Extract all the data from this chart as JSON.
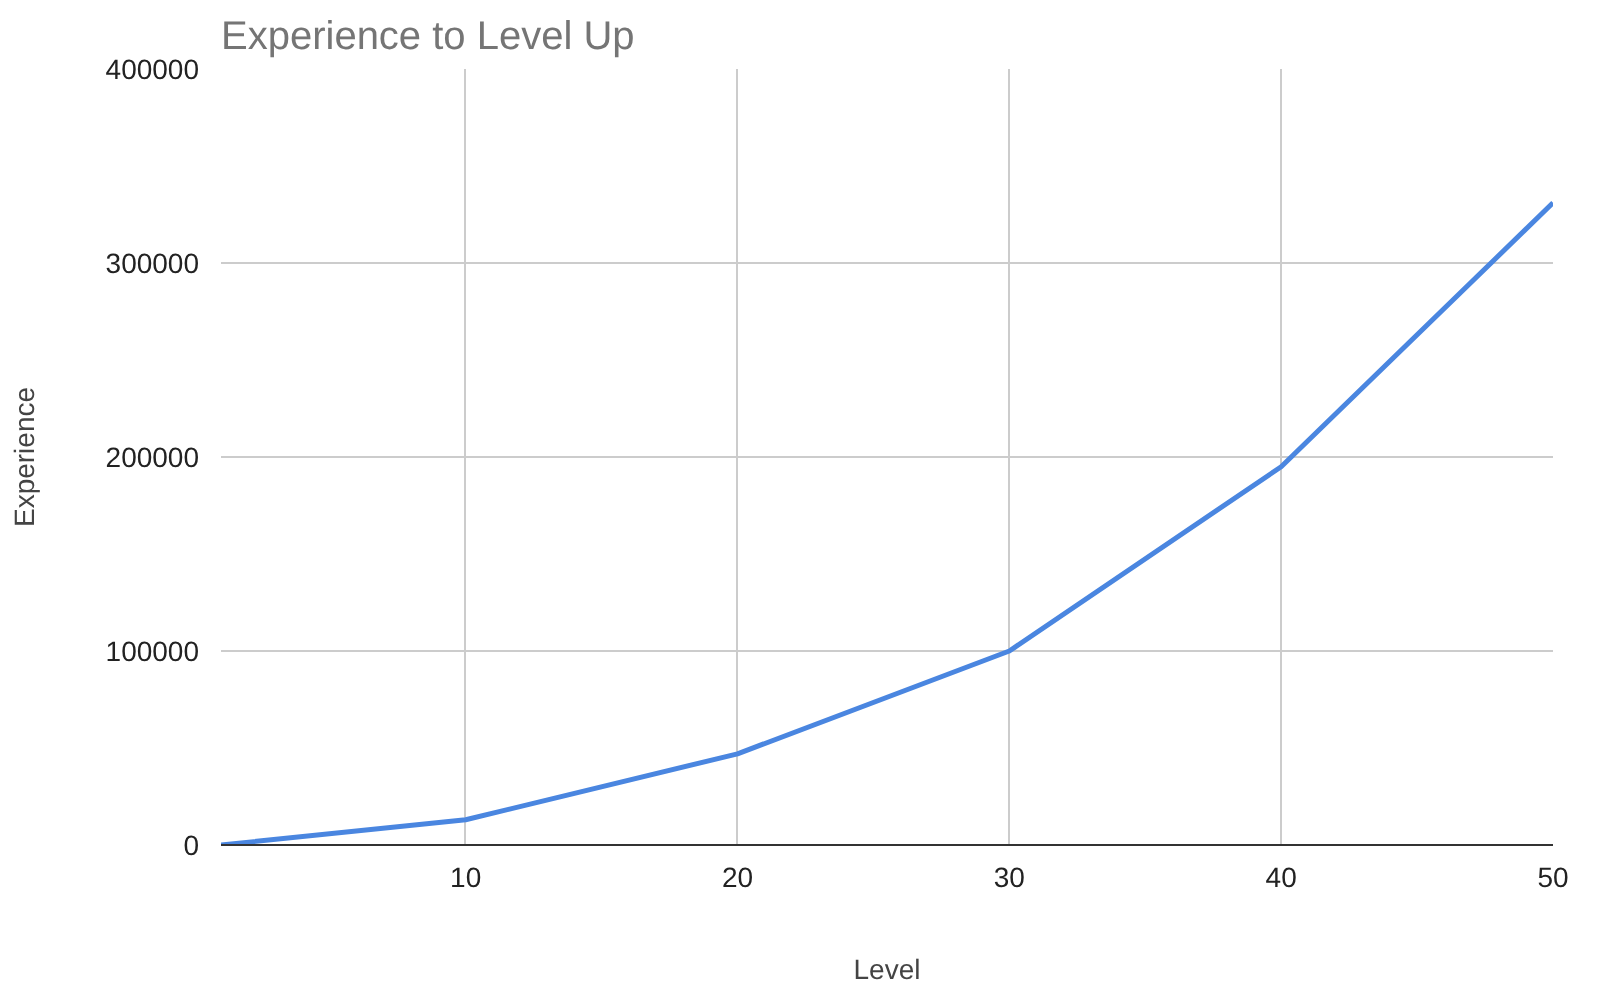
{
  "chart_data": {
    "type": "line",
    "title": "Experience to Level Up",
    "xlabel": "Level",
    "ylabel": "Experience",
    "x": [
      1,
      10,
      20,
      30,
      40,
      50
    ],
    "series": [
      {
        "color": "#4a86e0",
        "values": [
          0,
          13000,
          47000,
          100000,
          195000,
          331000
        ]
      }
    ],
    "xlim": [
      1,
      50
    ],
    "xticks": [
      10,
      20,
      30,
      40,
      50
    ],
    "ylim": [
      0,
      400000
    ],
    "yticks": [
      0,
      100000,
      200000,
      300000,
      400000
    ],
    "grid": true,
    "marker": "none",
    "line_style": "solid"
  }
}
